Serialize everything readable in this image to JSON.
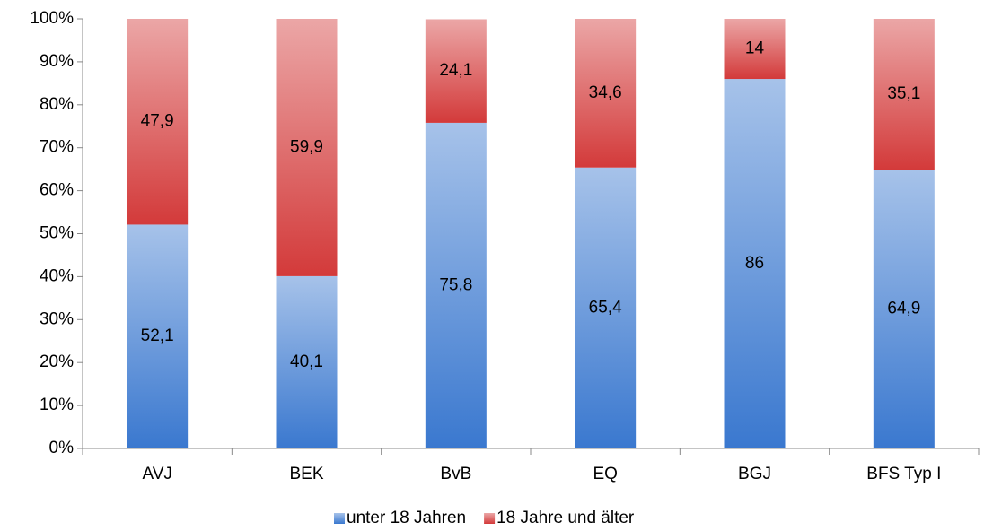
{
  "chart_data": {
    "type": "stacked_bar",
    "categories": [
      "AVJ",
      "BEK",
      "BvB",
      "EQ",
      "BGJ",
      "BFS Typ I"
    ],
    "series": [
      {
        "name": "unter 18 Jahren",
        "color": "#3a78cf",
        "values": [
          52.1,
          40.1,
          75.8,
          65.4,
          86,
          64.9
        ],
        "value_labels": [
          "52,1",
          "40,1",
          "75,8",
          "65,4",
          "86",
          "64,9"
        ]
      },
      {
        "name": "18 Jahre und älter",
        "color": "#d33a3a",
        "values": [
          47.9,
          59.9,
          24.1,
          34.6,
          14,
          35.1
        ],
        "value_labels": [
          "47,9",
          "59,9",
          "24,1",
          "34,6",
          "14",
          "35,1"
        ]
      }
    ],
    "ylim": [
      0,
      100
    ],
    "yticks": [
      {
        "value": 0,
        "label": "0%"
      },
      {
        "value": 10,
        "label": "10%"
      },
      {
        "value": 20,
        "label": "20%"
      },
      {
        "value": 30,
        "label": "30%"
      },
      {
        "value": 40,
        "label": "40%"
      },
      {
        "value": 50,
        "label": "50%"
      },
      {
        "value": 60,
        "label": "60%"
      },
      {
        "value": 70,
        "label": "70%"
      },
      {
        "value": 80,
        "label": "80%"
      },
      {
        "value": 90,
        "label": "90%"
      },
      {
        "value": 100,
        "label": "100%"
      }
    ],
    "grid": false,
    "legend": "bottom"
  }
}
